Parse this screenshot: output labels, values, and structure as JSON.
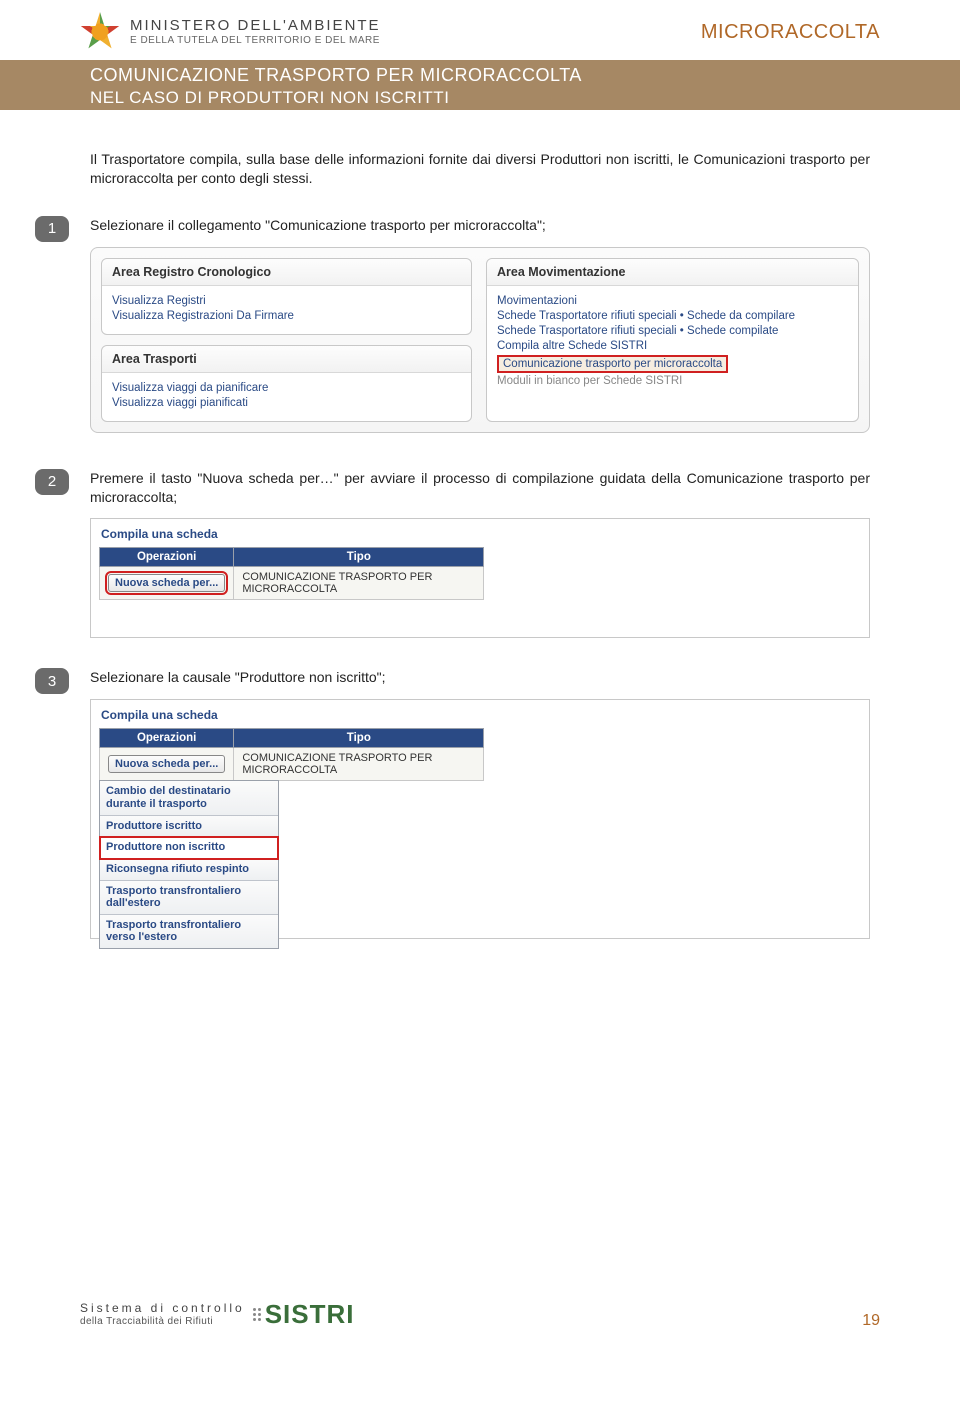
{
  "header": {
    "ministry_line1": "MINISTERO DELL'AMBIENTE",
    "ministry_line2": "E DELLA TUTELA DEL TERRITORIO E DEL MARE",
    "top_right": "MICRORACCOLTA"
  },
  "band": {
    "line1": "COMUNICAZIONE TRASPORTO PER MICRORACCOLTA",
    "line2": "NEL CASO DI PRODUTTORI NON ISCRITTI"
  },
  "intro": "Il Trasportatore compila, sulla base delle informazioni fornite dai diversi Produttori non iscritti, le Comunicazioni trasporto per microraccolta per conto degli stessi.",
  "step1": {
    "num": "1",
    "text": "Selezionare il collegamento \"Comunicazione trasporto per microraccolta\";",
    "left_box_title": "Area Registro Cronologico",
    "left_box_items": [
      "Visualizza Registri",
      "Visualizza Registrazioni Da Firmare"
    ],
    "left_box2_title": "Area Trasporti",
    "left_box2_items": [
      "Visualizza viaggi da pianificare",
      "Visualizza viaggi pianificati"
    ],
    "right_box_title": "Area Movimentazione",
    "right_box_items": [
      "Movimentazioni",
      "Schede Trasportatore rifiuti speciali • Schede da compilare",
      "Schede Trasportatore rifiuti speciali • Schede compilate",
      "Compila altre Schede SISTRI"
    ],
    "right_box_highlight": "Comunicazione trasporto per microraccolta",
    "right_box_after": "Moduli in bianco per Schede SISTRI"
  },
  "step2": {
    "num": "2",
    "text": "Premere il tasto \"Nuova scheda per…\" per avviare il processo di compilazione guidata della Comunicazione trasporto per microraccolta;",
    "compila_title": "Compila una scheda",
    "th_operazioni": "Operazioni",
    "th_tipo": "Tipo",
    "btn_label": "Nuova scheda per...",
    "tipo_value": "COMUNICAZIONE TRASPORTO PER MICRORACCOLTA"
  },
  "step3": {
    "num": "3",
    "text": "Selezionare la  causale \"Produttore non iscritto\";",
    "compila_title": "Compila una scheda",
    "th_operazioni": "Operazioni",
    "th_tipo": "Tipo",
    "btn_label": "Nuova scheda per...",
    "tipo_value": "COMUNICAZIONE TRASPORTO PER MICRORACCOLTA",
    "dropdown": [
      "Cambio del destinatario durante il trasporto",
      "Produttore iscritto",
      "Produttore non iscritto",
      "Riconsegna rifiuto respinto",
      "Trasporto transfrontaliero dall'estero",
      "Trasporto transfrontaliero verso l'estero"
    ],
    "dropdown_highlight_index": 2
  },
  "footer": {
    "line1": "Sistema di controllo",
    "line2": "della Tracciabilità dei Rifiuti",
    "brand": "SISTRI",
    "page": "19"
  },
  "colors": {
    "band_bg": "#a68864",
    "accent": "#b06828",
    "link": "#2a4a85",
    "highlight_border": "#d02020",
    "th_bg": "#2a4a85"
  }
}
